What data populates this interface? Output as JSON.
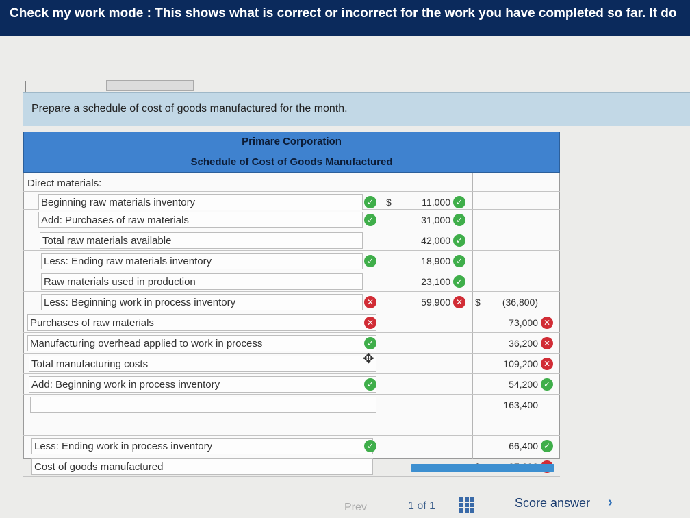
{
  "banner": {
    "text": "Check my work mode : This shows what is correct or incorrect for the work you have completed so far. It do"
  },
  "instruction": "Prepare a schedule of cost of goods manufactured for the month.",
  "schedule": {
    "company": "Primare Corporation",
    "title": "Schedule of Cost of Goods Manufactured",
    "section_label": "Direct materials:",
    "rows": [
      {
        "label": "Beginning raw materials inventory",
        "label_status": "correct",
        "dollar_mid": "$",
        "amount_mid": "11,000",
        "mid_status": "correct"
      },
      {
        "label": "Add: Purchases of raw materials",
        "label_status": "correct",
        "amount_mid": "31,000",
        "mid_status": "correct"
      },
      {
        "label": "Total raw materials available",
        "amount_mid": "42,000",
        "mid_status": "correct"
      },
      {
        "label": "Less: Ending raw materials inventory",
        "label_status": "correct",
        "amount_mid": "18,900",
        "mid_status": "correct"
      },
      {
        "label": "Raw materials used in production",
        "amount_mid": "23,100",
        "mid_status": "correct"
      },
      {
        "label": "Less: Beginning work in process inventory",
        "label_status": "incorrect",
        "amount_mid": "59,900",
        "mid_status": "incorrect",
        "dollar_right": "$",
        "amount_right": "(36,800)"
      },
      {
        "label": "Purchases of raw materials",
        "label_status": "incorrect",
        "amount_right": "73,000",
        "right_status": "incorrect"
      },
      {
        "label": "Manufacturing overhead applied to work in process",
        "label_status": "correct",
        "amount_right": "36,200",
        "right_status": "incorrect"
      },
      {
        "label": "Total manufacturing costs",
        "amount_right": "109,200",
        "right_status": "incorrect"
      },
      {
        "label": "Add: Beginning work in process inventory",
        "label_status": "correct",
        "amount_right": "54,200",
        "right_status": "correct"
      },
      {
        "label": "",
        "amount_right": "163,400"
      },
      {
        "label": "Less: Ending work in process inventory",
        "label_status": "correct",
        "amount_right": "66,400",
        "right_status": "correct"
      },
      {
        "label": "Cost of goods manufactured",
        "dollar_right": "$",
        "amount_right": "97,000",
        "right_status": "incorrect"
      }
    ]
  },
  "footer": {
    "prev": "Prev",
    "page": "1 of 1",
    "score": "Score answer",
    "next_icon": "chevron-right-icon",
    "grid_icon": "grid-icon"
  },
  "colors": {
    "banner": "#0b2a5c",
    "header": "#3f82cf",
    "correct": "#3fae4a",
    "incorrect": "#d12c35"
  }
}
